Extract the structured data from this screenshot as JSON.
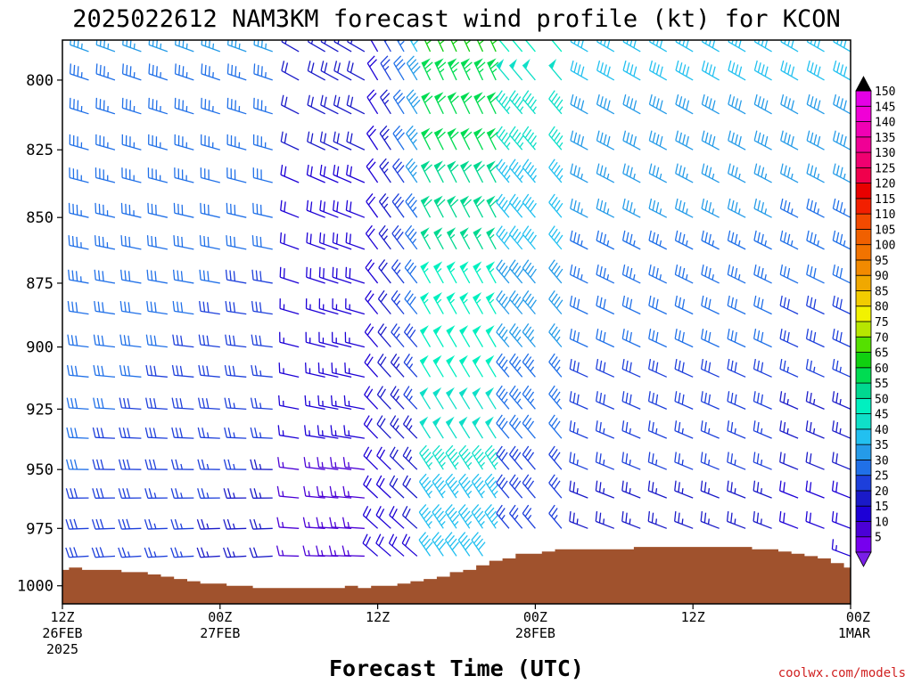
{
  "chart_data": {
    "type": "wind_barb_profile",
    "title": "2025022612 NAM3KM forecast wind profile (kt) for KCON",
    "xlabel": "Forecast Time (UTC)",
    "ylabel": "",
    "units": "kt",
    "y_axis": {
      "quantity": "pressure (hPa)",
      "inverted": true,
      "ylim": [
        1008,
        786
      ],
      "ticks": [
        800,
        825,
        850,
        875,
        900,
        925,
        950,
        975,
        1000
      ],
      "tick_labels": [
        "800",
        "825",
        "850",
        "875",
        "900",
        "925",
        "950",
        "975",
        "1000"
      ]
    },
    "x_axis": {
      "quantity": "forecast hour",
      "xlim": [
        0,
        60
      ],
      "ticks": [
        0,
        12,
        24,
        36,
        48,
        60
      ],
      "tick_labels": [
        [
          "12Z",
          "26FEB",
          "2025"
        ],
        [
          "00Z",
          "27FEB"
        ],
        [
          "12Z"
        ],
        [
          "00Z",
          "28FEB"
        ],
        [
          "12Z"
        ],
        [
          "00Z",
          "1MAR"
        ]
      ]
    },
    "barb_levels_hPa": [
      790,
      800,
      812,
      825,
      837,
      850,
      862,
      875,
      887,
      900,
      912,
      925,
      937,
      950,
      962,
      975,
      987,
      1000
    ],
    "barb_hours": [
      0,
      2,
      4,
      6,
      8,
      10,
      12,
      14,
      16,
      18,
      20,
      21,
      22,
      23,
      24,
      25,
      26,
      27,
      28,
      29,
      30,
      31,
      32,
      33,
      34,
      35,
      36,
      38,
      40,
      42,
      44,
      46,
      48,
      50,
      52,
      54,
      56,
      58,
      60
    ],
    "surface_pressure": {
      "hours": [
        0,
        1,
        2,
        3,
        4,
        5,
        6,
        7,
        8,
        9,
        10,
        11,
        12,
        13,
        14,
        15,
        16,
        17,
        18,
        19,
        20,
        21,
        22,
        23,
        24,
        25,
        26,
        27,
        28,
        29,
        30,
        31,
        32,
        33,
        34,
        35,
        36,
        37,
        38,
        39,
        40,
        41,
        42,
        43,
        44,
        45,
        46,
        47,
        48,
        49,
        50,
        51,
        52,
        53,
        54,
        55,
        56,
        57,
        58,
        59,
        60
      ],
      "hPa": [
        993,
        992,
        993,
        993,
        993,
        994,
        994,
        995,
        996,
        997,
        998,
        999,
        999,
        1000,
        1000,
        1001,
        1001,
        1001,
        1001,
        1001,
        1001,
        1001,
        1000,
        1001,
        1000,
        1000,
        999,
        998,
        997,
        996,
        994,
        993,
        991,
        989,
        988,
        986,
        986,
        985,
        984,
        984,
        984,
        984,
        984,
        984,
        983,
        983,
        983,
        983,
        983,
        983,
        983,
        983,
        983,
        984,
        984,
        985,
        986,
        987,
        988,
        990,
        992
      ]
    },
    "colorbar": {
      "levels": [
        5,
        10,
        15,
        20,
        25,
        30,
        35,
        40,
        45,
        50,
        55,
        60,
        65,
        70,
        75,
        80,
        85,
        90,
        95,
        100,
        105,
        110,
        115,
        120,
        125,
        130,
        135,
        140,
        145,
        150
      ],
      "colors": [
        "#7700ee",
        "#4b00d6",
        "#1d00d6",
        "#1a1ac8",
        "#1d3fdb",
        "#2070e8",
        "#259be8",
        "#22c0f0",
        "#0fdfc8",
        "#00f0c0",
        "#00d890",
        "#00dc52",
        "#10d010",
        "#55e000",
        "#b7e600",
        "#f2f200",
        "#f2cc00",
        "#f0a800",
        "#f28a00",
        "#f27300",
        "#f06000",
        "#f24a00",
        "#f21f00",
        "#e80000",
        "#f0004c",
        "#f00070",
        "#f00095",
        "#f000b4",
        "#f000d6",
        "#e400e6"
      ],
      "arrow_low_color": "#7a1ee8",
      "arrow_high_color": "#000000"
    },
    "colors": {
      "ground": "#a0522d",
      "frame": "#000000"
    }
  },
  "footer": {
    "credit": "coolwx.com/models"
  }
}
